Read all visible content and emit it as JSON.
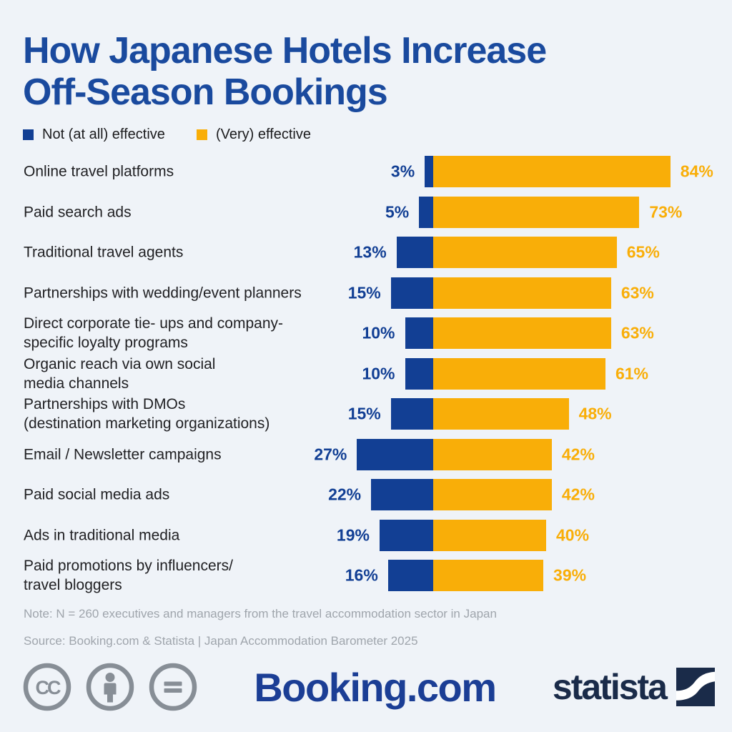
{
  "title": {
    "line1": "How Japanese Hotels Increase",
    "line2": "Off-Season Bookings"
  },
  "chart_data": {
    "type": "bar",
    "orientation": "horizontal-diverging",
    "title": "How Japanese Hotels Increase Off-Season Bookings",
    "value_suffix": "%",
    "legend_position": "top-left",
    "grid": false,
    "categories": [
      "Online travel platforms",
      "Paid search ads",
      "Traditional travel agents",
      "Partnerships with wedding/event planners",
      "Direct corporate tie- ups and company-\nspecific loyalty programs",
      "Organic reach via own social\nmedia channels",
      "Partnerships with DMOs\n(destination marketing organizations)",
      "Email / Newsletter campaigns",
      "Paid social media ads",
      "Ads in traditional media",
      "Paid promotions by influencers/\ntravel bloggers"
    ],
    "series": [
      {
        "name": "Not (at all) effective",
        "color": "#123F94",
        "values": [
          3,
          5,
          13,
          15,
          10,
          10,
          15,
          27,
          22,
          19,
          16
        ]
      },
      {
        "name": "(Very) effective",
        "color": "#F9AE08",
        "values": [
          84,
          73,
          65,
          63,
          63,
          61,
          48,
          42,
          42,
          40,
          39
        ]
      }
    ]
  },
  "colors": {
    "background": "#EFF3F8",
    "title_blue": "#1A4A9E",
    "bar_blue": "#123F94",
    "bar_orange": "#F9AE08",
    "note_gray": "#9FA5AC",
    "cc_gray": "#878E96",
    "booking_blue": "#1B3E95",
    "statista_navy": "#1A2B49"
  },
  "note": "Note: N = 260 executives and managers from the travel accommodation sector in Japan",
  "source": "Source: Booking.com & Statista | Japan Accommodation Barometer 2025",
  "footer": {
    "booking_logo": "Booking.com",
    "statista_logo": "statista",
    "license_icons": [
      "cc-icon",
      "attribution-icon",
      "no-derivatives-icon"
    ]
  }
}
